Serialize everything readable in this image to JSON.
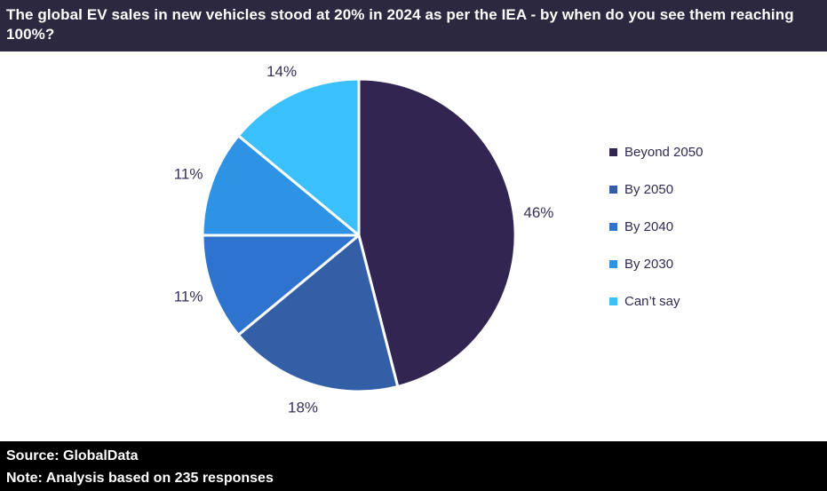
{
  "header": {
    "title": "The global EV sales in new vehicles stood at 20% in 2024 as per the IEA - by when do you see them reaching 100%?",
    "background": "#2b2840",
    "text_color": "#ffffff"
  },
  "chart_data": {
    "type": "pie",
    "start_angle_deg": 0,
    "direction": "clockwise",
    "label_color": "#363056",
    "divider_color": "#ffffff",
    "legend_position": "right",
    "slices": [
      {
        "label": "Beyond 2050",
        "value": 46,
        "display": "46%",
        "color": "#332552"
      },
      {
        "label": "By 2050",
        "value": 18,
        "display": "18%",
        "color": "#335fa6"
      },
      {
        "label": "By 2040",
        "value": 11,
        "display": "11%",
        "color": "#2e74ce"
      },
      {
        "label": "By 2030",
        "value": 11,
        "display": "11%",
        "color": "#2e93e5"
      },
      {
        "label": "Can’t say",
        "value": 14,
        "display": "14%",
        "color": "#3ac1fc"
      }
    ]
  },
  "footer": {
    "source": "Source: GlobalData",
    "note": "Note: Analysis based on 235 responses",
    "background": "#000000",
    "text_color": "#ffffff"
  }
}
